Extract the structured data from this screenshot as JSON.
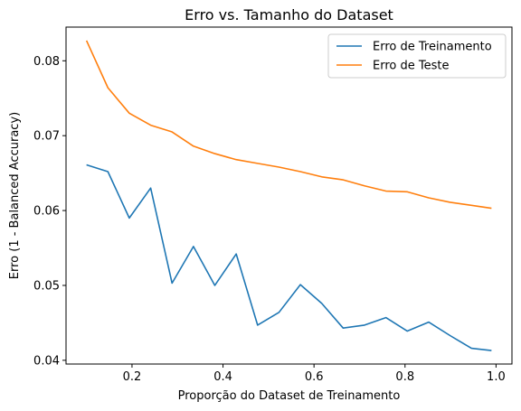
{
  "chart_data": {
    "type": "line",
    "title": "Erro vs. Tamanho do Dataset",
    "xlabel": "Proporção do Dataset de Treinamento",
    "ylabel": "Erro (1 - Balanced Accuracy)",
    "xlim": [
      0.055,
      1.035
    ],
    "ylim": [
      0.0395,
      0.0845
    ],
    "xticks": [
      0.2,
      0.4,
      0.6,
      0.8,
      1.0
    ],
    "xtick_labels": [
      "0.2",
      "0.4",
      "0.6",
      "0.8",
      "1.0"
    ],
    "yticks": [
      0.04,
      0.05,
      0.06,
      0.07,
      0.08
    ],
    "ytick_labels": [
      "0.04",
      "0.05",
      "0.06",
      "0.07",
      "0.08"
    ],
    "grid": false,
    "legend_position": "top-right",
    "x": [
      0.1,
      0.147,
      0.194,
      0.241,
      0.288,
      0.335,
      0.382,
      0.429,
      0.476,
      0.523,
      0.57,
      0.617,
      0.664,
      0.711,
      0.758,
      0.805,
      0.852,
      0.899,
      0.946,
      0.99
    ],
    "series": [
      {
        "name": "Erro de Treinamento",
        "color": "#1f77b4",
        "values": [
          0.0661,
          0.0652,
          0.059,
          0.063,
          0.0503,
          0.0552,
          0.05,
          0.0542,
          0.0447,
          0.0464,
          0.0501,
          0.0476,
          0.0443,
          0.0447,
          0.0457,
          0.0439,
          0.0451,
          0.0433,
          0.0416,
          0.0413
        ]
      },
      {
        "name": "Erro de Teste",
        "color": "#ff7f0e",
        "values": [
          0.0827,
          0.0764,
          0.073,
          0.0714,
          0.0705,
          0.0686,
          0.0676,
          0.0668,
          0.0663,
          0.0658,
          0.0652,
          0.0645,
          0.0641,
          0.0633,
          0.0626,
          0.0625,
          0.0617,
          0.0611,
          0.0607,
          0.0603
        ]
      }
    ]
  }
}
